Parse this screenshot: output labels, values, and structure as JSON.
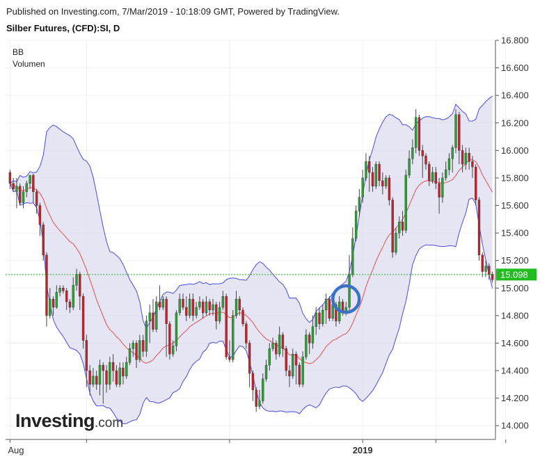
{
  "header": {
    "published": "Published on Investing.com, 7/Mar/2019 - 10:18:09 GMT, Powered by TradingView.",
    "title": "Silber Futures, (CFD):SI, D"
  },
  "indicators": [
    "BB",
    "Volumen"
  ],
  "logo": {
    "main": "Investing",
    "suffix": ".com"
  },
  "colors": {
    "up": "#2e9e35",
    "down": "#c4232b",
    "band": "#4b4bdc",
    "band_fill": "#dcdcf0",
    "basis": "#e35050",
    "price_line": "#13b713",
    "price_label_bg": "#22bb22",
    "highlight_circle": "#3c72c4"
  },
  "chart_data": {
    "type": "candlestick",
    "ylim": [
      13.9,
      16.8
    ],
    "y_ticks": [
      "16.800",
      "16.600",
      "16.400",
      "16.200",
      "16.000",
      "15.800",
      "15.600",
      "15.400",
      "15.200",
      "15.000",
      "14.800",
      "14.600",
      "14.400",
      "14.200",
      "14.000"
    ],
    "x_labels": [
      {
        "label": "Aug",
        "index": 0
      },
      {
        "label": "",
        "index": 23
      },
      {
        "label": "",
        "index": 66
      },
      {
        "label": "2019",
        "index": 106
      },
      {
        "label": "",
        "index": 128
      },
      {
        "label": "",
        "index": 149
      }
    ],
    "current_price": "15.098",
    "current_price_value": 15.098,
    "highlight": {
      "index": 101,
      "value": 14.92
    },
    "candles": [
      [
        15.84,
        15.76,
        15.86,
        15.72
      ],
      [
        15.76,
        15.72,
        15.8,
        15.7
      ],
      [
        15.7,
        15.74,
        15.8,
        15.58
      ],
      [
        15.74,
        15.62,
        15.76,
        15.6
      ],
      [
        15.62,
        15.7,
        15.74,
        15.58
      ],
      [
        15.7,
        15.76,
        15.78,
        15.66
      ],
      [
        15.76,
        15.82,
        15.82,
        15.72
      ],
      [
        15.82,
        15.7,
        15.83,
        15.62
      ],
      [
        15.7,
        15.6,
        15.72,
        15.54
      ],
      [
        15.6,
        15.46,
        15.62,
        15.38
      ],
      [
        15.46,
        15.24,
        15.48,
        15.2
      ],
      [
        15.24,
        14.8,
        15.26,
        14.72
      ],
      [
        14.8,
        14.92,
        15.0,
        14.78
      ],
      [
        14.92,
        14.86,
        14.94,
        14.8
      ],
      [
        14.86,
        14.97,
        15.02,
        14.85
      ],
      [
        14.97,
        15.0,
        15.02,
        14.94
      ],
      [
        15.0,
        14.98,
        15.02,
        14.96
      ],
      [
        14.98,
        14.9,
        15.0,
        14.84
      ],
      [
        14.9,
        14.86,
        14.92,
        14.82
      ],
      [
        14.86,
        15.02,
        15.08,
        14.84
      ],
      [
        15.02,
        15.1,
        15.14,
        14.98
      ],
      [
        15.1,
        14.94,
        15.12,
        14.84
      ],
      [
        14.94,
        14.62,
        14.96,
        14.56
      ],
      [
        14.62,
        14.4,
        14.66,
        14.28
      ],
      [
        14.4,
        14.3,
        14.44,
        14.22
      ],
      [
        14.3,
        14.36,
        14.42,
        14.28
      ],
      [
        14.36,
        14.3,
        14.4,
        14.26
      ],
      [
        14.3,
        14.44,
        14.48,
        14.22
      ],
      [
        14.44,
        14.4,
        14.46,
        14.16
      ],
      [
        14.4,
        14.3,
        14.44,
        14.24
      ],
      [
        14.3,
        14.46,
        14.5,
        14.26
      ],
      [
        14.46,
        14.4,
        14.52,
        14.32
      ],
      [
        14.4,
        14.3,
        14.44,
        14.28
      ],
      [
        14.3,
        14.42,
        14.46,
        14.28
      ],
      [
        14.42,
        14.36,
        14.46,
        14.3
      ],
      [
        14.36,
        14.46,
        14.5,
        14.34
      ],
      [
        14.46,
        14.56,
        14.6,
        14.44
      ],
      [
        14.56,
        14.6,
        14.62,
        14.5
      ],
      [
        14.6,
        14.48,
        14.62,
        14.42
      ],
      [
        14.48,
        14.62,
        14.66,
        14.46
      ],
      [
        14.62,
        14.54,
        14.66,
        14.5
      ],
      [
        14.54,
        14.76,
        14.8,
        14.5
      ],
      [
        14.76,
        14.82,
        14.88,
        14.6
      ],
      [
        14.82,
        14.7,
        14.92,
        14.68
      ],
      [
        14.7,
        14.9,
        14.94,
        14.68
      ],
      [
        14.9,
        14.86,
        15.02,
        14.84
      ],
      [
        14.86,
        14.92,
        14.94,
        14.84
      ],
      [
        14.92,
        14.74,
        14.94,
        14.5
      ],
      [
        14.74,
        14.52,
        14.76,
        14.48
      ],
      [
        14.52,
        14.58,
        14.62,
        14.5
      ],
      [
        14.58,
        14.82,
        14.84,
        14.54
      ],
      [
        14.82,
        14.92,
        14.96,
        14.8
      ],
      [
        14.92,
        14.86,
        14.96,
        14.84
      ],
      [
        14.86,
        14.8,
        14.94,
        14.76
      ],
      [
        14.8,
        14.92,
        14.96,
        14.78
      ],
      [
        14.92,
        14.8,
        14.96,
        14.76
      ],
      [
        14.8,
        14.86,
        14.9,
        14.78
      ],
      [
        14.86,
        14.9,
        14.94,
        14.84
      ],
      [
        14.9,
        14.82,
        14.92,
        14.78
      ],
      [
        14.82,
        14.9,
        14.94,
        14.8
      ],
      [
        14.9,
        14.84,
        14.92,
        14.8
      ],
      [
        14.84,
        14.88,
        14.92,
        14.8
      ],
      [
        14.88,
        14.76,
        14.9,
        14.7
      ],
      [
        14.76,
        14.86,
        14.9,
        14.74
      ],
      [
        14.86,
        14.94,
        14.98,
        14.84
      ],
      [
        14.94,
        14.5,
        14.96,
        14.48
      ],
      [
        14.5,
        14.48,
        14.62,
        14.46
      ],
      [
        14.48,
        14.8,
        14.84,
        14.46
      ],
      [
        14.8,
        14.92,
        14.98,
        14.78
      ],
      [
        14.92,
        14.84,
        14.94,
        14.8
      ],
      [
        14.84,
        14.74,
        14.86,
        14.72
      ],
      [
        14.74,
        14.6,
        14.76,
        14.56
      ],
      [
        14.6,
        14.38,
        14.62,
        14.28
      ],
      [
        14.38,
        14.26,
        14.4,
        14.18
      ],
      [
        14.26,
        14.14,
        14.28,
        14.1
      ],
      [
        14.14,
        14.18,
        14.26,
        14.12
      ],
      [
        14.18,
        14.34,
        14.38,
        14.16
      ],
      [
        14.34,
        14.44,
        14.48,
        14.32
      ],
      [
        14.44,
        14.56,
        14.6,
        14.4
      ],
      [
        14.56,
        14.6,
        14.64,
        14.54
      ],
      [
        14.6,
        14.52,
        14.62,
        14.48
      ],
      [
        14.52,
        14.66,
        14.72,
        14.5
      ],
      [
        14.66,
        14.56,
        14.68,
        14.5
      ],
      [
        14.56,
        14.4,
        14.58,
        14.36
      ],
      [
        14.4,
        14.36,
        14.44,
        14.28
      ],
      [
        14.36,
        14.52,
        14.56,
        14.34
      ],
      [
        14.52,
        14.44,
        14.54,
        14.3
      ],
      [
        14.44,
        14.3,
        14.46,
        14.28
      ],
      [
        14.3,
        14.5,
        14.54,
        14.28
      ],
      [
        14.5,
        14.66,
        14.7,
        14.48
      ],
      [
        14.66,
        14.6,
        14.68,
        14.52
      ],
      [
        14.6,
        14.72,
        14.8,
        14.56
      ],
      [
        14.72,
        14.82,
        14.86,
        14.66
      ],
      [
        14.82,
        14.74,
        14.86,
        14.7
      ],
      [
        14.74,
        14.84,
        14.88,
        14.72
      ],
      [
        14.84,
        14.92,
        14.96,
        14.74
      ],
      [
        14.92,
        14.78,
        14.94,
        14.76
      ],
      [
        14.78,
        14.88,
        14.9,
        14.76
      ],
      [
        14.88,
        14.76,
        14.9,
        14.72
      ],
      [
        14.76,
        14.9,
        14.94,
        14.74
      ],
      [
        14.9,
        14.82,
        14.92,
        14.8
      ],
      [
        14.82,
        14.86,
        14.9,
        14.8
      ],
      [
        14.86,
        15.1,
        15.24,
        14.84
      ],
      [
        15.1,
        15.36,
        15.44,
        15.08
      ],
      [
        15.36,
        15.56,
        15.6,
        15.34
      ],
      [
        15.56,
        15.66,
        15.72,
        15.52
      ],
      [
        15.66,
        15.8,
        15.86,
        15.62
      ],
      [
        15.8,
        15.92,
        15.98,
        15.78
      ],
      [
        15.92,
        15.84,
        15.96,
        15.7
      ],
      [
        15.84,
        15.74,
        15.88,
        15.7
      ],
      [
        15.74,
        15.9,
        15.92,
        15.72
      ],
      [
        15.9,
        15.78,
        15.92,
        15.74
      ],
      [
        15.78,
        15.74,
        15.84,
        15.68
      ],
      [
        15.74,
        15.8,
        15.82,
        15.72
      ],
      [
        15.8,
        15.64,
        15.82,
        15.6
      ],
      [
        15.64,
        15.26,
        15.66,
        15.22
      ],
      [
        15.26,
        15.4,
        15.44,
        15.24
      ],
      [
        15.4,
        15.48,
        15.52,
        15.36
      ],
      [
        15.48,
        15.42,
        15.56,
        15.38
      ],
      [
        15.42,
        15.82,
        15.86,
        15.4
      ],
      [
        15.82,
        15.94,
        16.0,
        15.8
      ],
      [
        15.94,
        16.02,
        16.08,
        15.9
      ],
      [
        16.02,
        16.24,
        16.3,
        15.98
      ],
      [
        16.24,
        16.0,
        16.26,
        15.96
      ],
      [
        16.0,
        15.96,
        16.04,
        15.8
      ],
      [
        15.96,
        15.9,
        15.98,
        15.86
      ],
      [
        15.9,
        15.78,
        15.92,
        15.74
      ],
      [
        15.78,
        15.84,
        15.88,
        15.76
      ],
      [
        15.84,
        15.76,
        15.88,
        15.72
      ],
      [
        15.76,
        15.66,
        15.8,
        15.54
      ],
      [
        15.66,
        15.8,
        15.84,
        15.62
      ],
      [
        15.8,
        15.86,
        15.92,
        15.78
      ],
      [
        15.86,
        15.94,
        15.98,
        15.82
      ],
      [
        15.94,
        16.02,
        16.04,
        15.84
      ],
      [
        16.02,
        16.26,
        16.3,
        15.98
      ],
      [
        16.26,
        16.0,
        16.28,
        15.9
      ],
      [
        16.0,
        15.9,
        16.04,
        15.84
      ],
      [
        15.9,
        15.98,
        16.02,
        15.86
      ],
      [
        15.98,
        15.92,
        16.02,
        15.86
      ],
      [
        15.92,
        15.88,
        15.96,
        15.8
      ],
      [
        15.88,
        15.64,
        15.9,
        15.6
      ],
      [
        15.64,
        15.24,
        15.66,
        15.2
      ],
      [
        15.24,
        15.12,
        15.26,
        15.08
      ],
      [
        15.12,
        15.16,
        15.2,
        15.08
      ],
      [
        15.16,
        15.1,
        15.18,
        15.06
      ],
      [
        15.1,
        15.06,
        15.12,
        15.04
      ]
    ]
  }
}
